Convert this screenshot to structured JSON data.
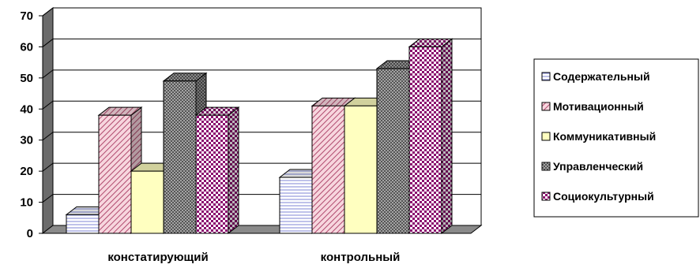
{
  "chart_data": {
    "type": "bar",
    "title": "",
    "xlabel": "",
    "ylabel": "",
    "ylim": [
      0,
      70
    ],
    "yticks": [
      0,
      10,
      20,
      30,
      40,
      50,
      60,
      70
    ],
    "categories": [
      "констатирующий",
      "контрольный"
    ],
    "series": [
      {
        "name": "Содержательный",
        "values": [
          6,
          18
        ],
        "color": "#ffffff",
        "pattern": "hlines"
      },
      {
        "name": "Мотивационный",
        "values": [
          38,
          41
        ],
        "color": "#f2b5c4",
        "pattern": "diag"
      },
      {
        "name": "Коммуникативный",
        "values": [
          20,
          41
        ],
        "color": "#ffffc0",
        "pattern": "none"
      },
      {
        "name": "Управленческий",
        "values": [
          49,
          53
        ],
        "color": "#707070",
        "pattern": "dots"
      },
      {
        "name": "Социокультурный",
        "values": [
          38,
          60
        ],
        "color": "#a0007a",
        "pattern": "checker"
      }
    ],
    "grid": true,
    "legend_position": "right",
    "style": "3d-column"
  }
}
